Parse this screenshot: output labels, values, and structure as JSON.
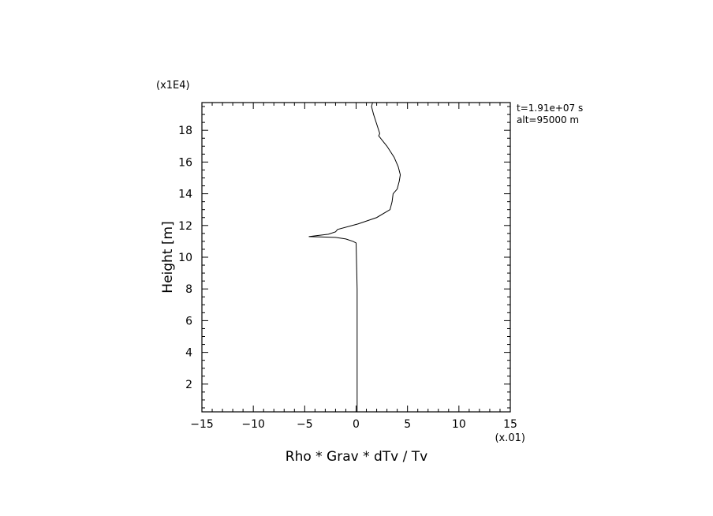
{
  "chart_data": {
    "type": "line",
    "title": "",
    "xlabel": "Rho * Grav * dTv / Tv",
    "ylabel": "Height [m]",
    "x_multiplier": "(x.01)",
    "y_multiplier": "(x1E4)",
    "xlim": [
      -15,
      15
    ],
    "ylim": [
      0.25,
      19.75
    ],
    "xticks": [
      -15,
      -10,
      -5,
      0,
      5,
      10,
      15
    ],
    "yticks": [
      2,
      4,
      6,
      8,
      10,
      12,
      14,
      16,
      18
    ],
    "xtick_labels": [
      "−15",
      "−10",
      "−5",
      "0",
      "5",
      "10",
      "15"
    ],
    "ytick_labels": [
      "2",
      "4",
      "6",
      "8",
      "10",
      "12",
      "14",
      "16",
      "18"
    ],
    "annotations": [
      "t=1.91e+07 s",
      "alt=95000 m"
    ],
    "grid": false,
    "legend": "none",
    "series": [
      {
        "x": [
          0.1,
          0.1,
          0.1,
          0.1,
          0.0,
          -0.3,
          -1.0,
          -2.0,
          -3.5,
          -4.6,
          -2.7,
          -2.0,
          -1.8,
          0.2,
          2.0,
          3.3,
          3.5,
          3.6,
          4.0,
          4.2,
          4.3,
          4.1,
          3.7,
          3.0,
          2.5,
          2.2,
          2.3,
          2.0,
          1.7,
          1.5,
          1.6
        ],
        "y": [
          0.25,
          2.0,
          5.0,
          8.0,
          10.9,
          11.0,
          11.15,
          11.25,
          11.28,
          11.3,
          11.45,
          11.6,
          11.75,
          12.1,
          12.5,
          13.0,
          13.5,
          14.0,
          14.3,
          14.8,
          15.2,
          15.7,
          16.3,
          17.0,
          17.4,
          17.65,
          17.8,
          18.4,
          19.0,
          19.5,
          19.75
        ]
      }
    ]
  }
}
